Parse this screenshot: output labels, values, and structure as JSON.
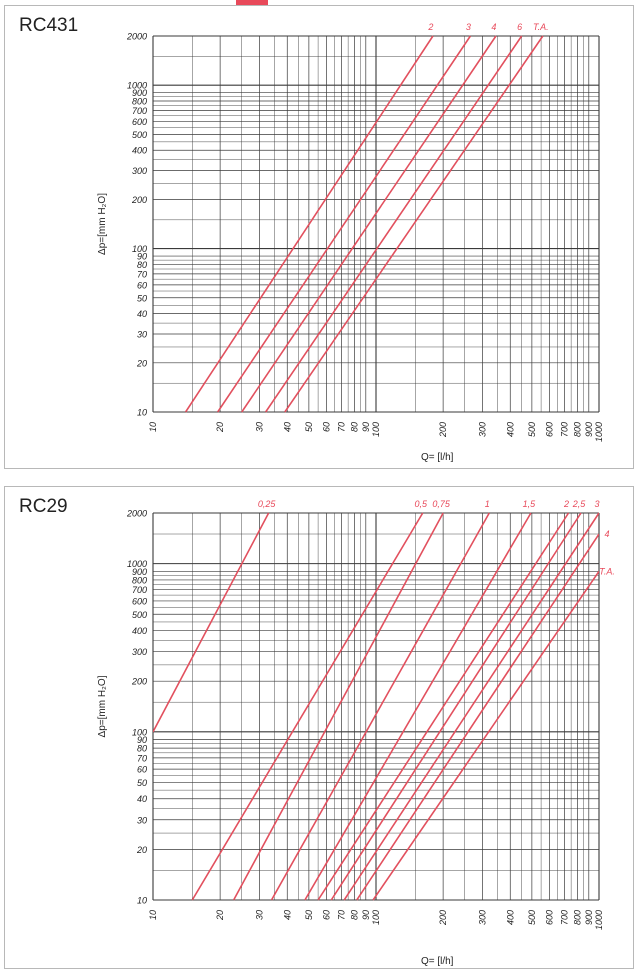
{
  "colors": {
    "accent": "#e8495a",
    "series_line": "#e2505e",
    "grid": "#3a3a3a",
    "text": "#222222"
  },
  "chart_data": [
    {
      "panel_label": "RC431",
      "type": "line",
      "scale": "log-log",
      "xlabel": "Q= [l/h]",
      "ylabel": "Δp=[mm H₂O]",
      "xlim": [
        10,
        1000
      ],
      "ylim": [
        10,
        2000
      ],
      "x_tick_labels": [
        {
          "label": "10",
          "value": 10
        },
        {
          "label": "20",
          "value": 20
        },
        {
          "label": "30",
          "value": 30
        },
        {
          "label": "40",
          "value": 40
        },
        {
          "label": "50",
          "value": 50
        },
        {
          "label": "60",
          "value": 60
        },
        {
          "label": "70",
          "value": 70
        },
        {
          "label": "80",
          "value": 80
        },
        {
          "label": "90",
          "value": 90
        },
        {
          "label": "100",
          "value": 100
        },
        {
          "label": "200",
          "value": 200
        },
        {
          "label": "300",
          "value": 300
        },
        {
          "label": "400",
          "value": 400
        },
        {
          "label": "500",
          "value": 500
        },
        {
          "label": "600",
          "value": 600
        },
        {
          "label": "700",
          "value": 700
        },
        {
          "label": "800",
          "value": 800
        },
        {
          "label": "900",
          "value": 900
        },
        {
          "label": "1000",
          "value": 1000
        }
      ],
      "y_tick_labels": [
        {
          "label": "10",
          "value": 10
        },
        {
          "label": "20",
          "value": 20
        },
        {
          "label": "30",
          "value": 30
        },
        {
          "label": "40",
          "value": 40
        },
        {
          "label": "50",
          "value": 50
        },
        {
          "label": "60",
          "value": 60
        },
        {
          "label": "70",
          "value": 70
        },
        {
          "label": "80",
          "value": 80
        },
        {
          "label": "90",
          "value": 90
        },
        {
          "label": "100",
          "value": 100
        },
        {
          "label": "200",
          "value": 200
        },
        {
          "label": "300",
          "value": 300
        },
        {
          "label": "400",
          "value": 400
        },
        {
          "label": "500",
          "value": 500
        },
        {
          "label": "600",
          "value": 600
        },
        {
          "label": "700",
          "value": 700
        },
        {
          "label": "800",
          "value": 800
        },
        {
          "label": "900",
          "value": 900
        },
        {
          "label": "1000",
          "value": 1000
        },
        {
          "label": "2000",
          "value": 2000
        }
      ],
      "series": [
        {
          "name": "2",
          "points": [
            [
              14,
              10
            ],
            [
              180,
              2000
            ]
          ]
        },
        {
          "name": "3",
          "points": [
            [
              19.5,
              10
            ],
            [
              265,
              2000
            ]
          ]
        },
        {
          "name": "4",
          "points": [
            [
              25,
              10
            ],
            [
              345,
              2000
            ]
          ]
        },
        {
          "name": "6",
          "points": [
            [
              32,
              10
            ],
            [
              450,
              2000
            ]
          ]
        },
        {
          "name": "T.A.",
          "points": [
            [
              39,
              10
            ],
            [
              560,
              2000
            ]
          ]
        }
      ]
    },
    {
      "panel_label": "RC29",
      "type": "line",
      "scale": "log-log",
      "xlabel": "Q= [l/h]",
      "ylabel": "Δp=[mm H₂O]",
      "xlim": [
        10,
        1000
      ],
      "ylim": [
        10,
        2000
      ],
      "x_tick_labels": [
        {
          "label": "10",
          "value": 10
        },
        {
          "label": "20",
          "value": 20
        },
        {
          "label": "30",
          "value": 30
        },
        {
          "label": "40",
          "value": 40
        },
        {
          "label": "50",
          "value": 50
        },
        {
          "label": "60",
          "value": 60
        },
        {
          "label": "70",
          "value": 70
        },
        {
          "label": "80",
          "value": 80
        },
        {
          "label": "90",
          "value": 90
        },
        {
          "label": "100",
          "value": 100
        },
        {
          "label": "200",
          "value": 200
        },
        {
          "label": "300",
          "value": 300
        },
        {
          "label": "400",
          "value": 400
        },
        {
          "label": "500",
          "value": 500
        },
        {
          "label": "600",
          "value": 600
        },
        {
          "label": "700",
          "value": 700
        },
        {
          "label": "800",
          "value": 800
        },
        {
          "label": "900",
          "value": 900
        },
        {
          "label": "1000",
          "value": 1000
        }
      ],
      "y_tick_labels": [
        {
          "label": "10",
          "value": 10
        },
        {
          "label": "20",
          "value": 20
        },
        {
          "label": "30",
          "value": 30
        },
        {
          "label": "40",
          "value": 40
        },
        {
          "label": "50",
          "value": 50
        },
        {
          "label": "60",
          "value": 60
        },
        {
          "label": "70",
          "value": 70
        },
        {
          "label": "80",
          "value": 80
        },
        {
          "label": "90",
          "value": 90
        },
        {
          "label": "100",
          "value": 100
        },
        {
          "label": "200",
          "value": 200
        },
        {
          "label": "300",
          "value": 300
        },
        {
          "label": "400",
          "value": 400
        },
        {
          "label": "500",
          "value": 500
        },
        {
          "label": "600",
          "value": 600
        },
        {
          "label": "700",
          "value": 700
        },
        {
          "label": "800",
          "value": 800
        },
        {
          "label": "900",
          "value": 900
        },
        {
          "label": "1000",
          "value": 1000
        },
        {
          "label": "2000",
          "value": 2000
        }
      ],
      "series": [
        {
          "name": "0,25",
          "points": [
            [
              10,
              100
            ],
            [
              33,
              2000
            ]
          ]
        },
        {
          "name": "0,5",
          "points": [
            [
              15,
              10
            ],
            [
              162,
              2000
            ]
          ]
        },
        {
          "name": "0,75",
          "points": [
            [
              23,
              10
            ],
            [
              200,
              2000
            ]
          ]
        },
        {
          "name": "1",
          "points": [
            [
              34,
              10
            ],
            [
              322,
              2000
            ]
          ]
        },
        {
          "name": "1,5",
          "points": [
            [
              48,
              10
            ],
            [
              495,
              2000
            ]
          ]
        },
        {
          "name": "2",
          "points": [
            [
              55,
              10
            ],
            [
              730,
              2000
            ]
          ]
        },
        {
          "name": "2,5",
          "points": [
            [
              63,
              10
            ],
            [
              830,
              2000
            ]
          ]
        },
        {
          "name": "3",
          "points": [
            [
              72,
              10
            ],
            [
              1000,
              2000
            ]
          ]
        },
        {
          "name": "4",
          "points": [
            [
              82,
              10
            ],
            [
              1000,
              1500
            ]
          ]
        },
        {
          "name": "T.A.",
          "points": [
            [
              97,
              10
            ],
            [
              1000,
              900
            ]
          ]
        }
      ]
    }
  ]
}
